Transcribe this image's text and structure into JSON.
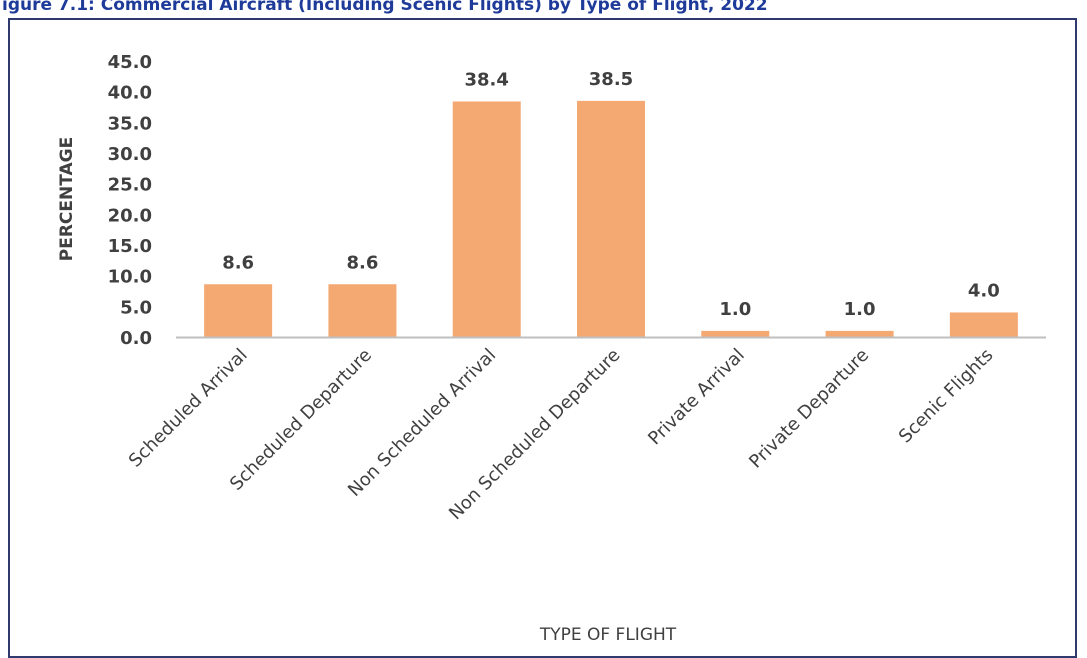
{
  "caption": "igure 7.1: Commercial Aircraft (Including Scenic Flights) by Type of Flight, 2022",
  "chart_data": {
    "type": "bar",
    "title": "",
    "xlabel": "TYPE OF FLIGHT",
    "ylabel": "PERCENTAGE",
    "categories": [
      "Scheduled Arrival",
      "Scheduled Departure",
      "Non Scheduled Arrival",
      "Non Scheduled Departure",
      "Private Arrival",
      "Private Departure",
      "Scenic Flights"
    ],
    "values": [
      8.6,
      8.6,
      38.4,
      38.5,
      1.0,
      1.0,
      4.0
    ],
    "data_labels": [
      "8.6",
      "8.6",
      "38.4",
      "38.5",
      "1.0",
      "1.0",
      "4.0"
    ],
    "ylim": [
      0,
      45
    ],
    "yticks": [
      "0.0",
      "5.0",
      "10.0",
      "15.0",
      "20.0",
      "25.0",
      "30.0",
      "35.0",
      "40.0",
      "45.0"
    ],
    "grid": false,
    "legend": "none",
    "colors": {
      "bar": "#f4a872",
      "axis": "#bfbfbf",
      "text": "#404040",
      "caption": "#1f3b9a",
      "frame": "#2e3a6e"
    }
  }
}
